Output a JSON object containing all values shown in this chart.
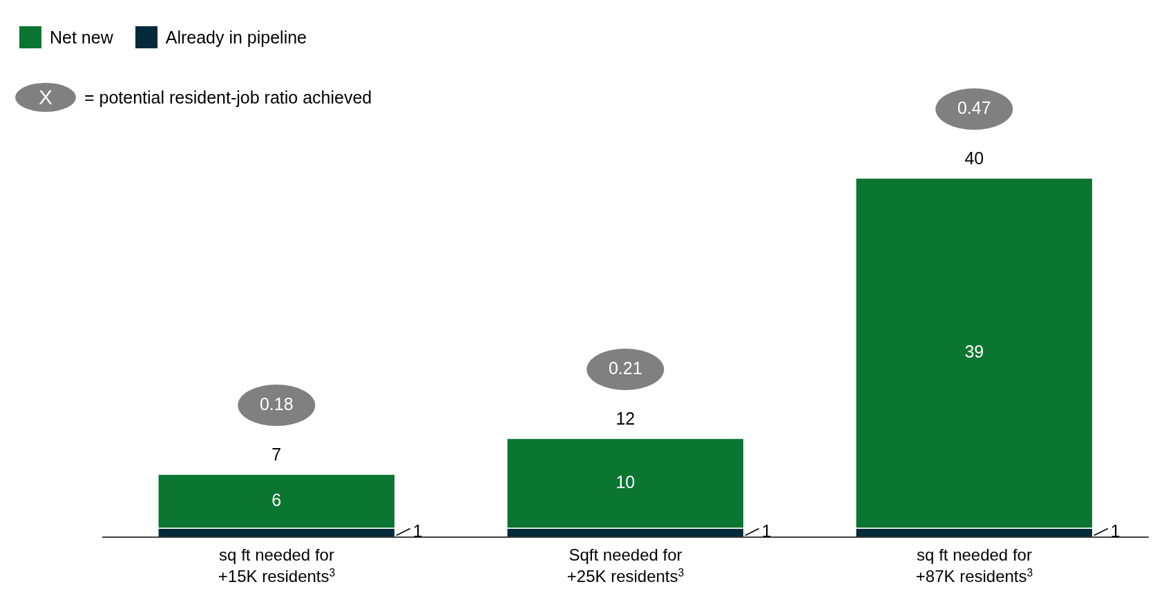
{
  "chart_data": {
    "type": "bar",
    "stacked": true,
    "categories": [
      "sq ft needed for +15K residents$^{3}$",
      "Sqft needed for +25K residents$^{3}$",
      "sq ft needed for +87K residents$^{3}$"
    ],
    "series": [
      {
        "name": "Already in pipeline",
        "color": "#022a3a",
        "values": [
          1,
          1,
          1
        ]
      },
      {
        "name": "Net new",
        "color": "#0b7532",
        "values": [
          6,
          10,
          39
        ]
      }
    ],
    "data_labels": true,
    "totals": [
      "7",
      "12",
      "40"
    ],
    "legend": "top left",
    "annotations": [
      "X = potential resident-job ratio achieved",
      "0.18",
      "0.21",
      "0.47"
    ]
  }
}
